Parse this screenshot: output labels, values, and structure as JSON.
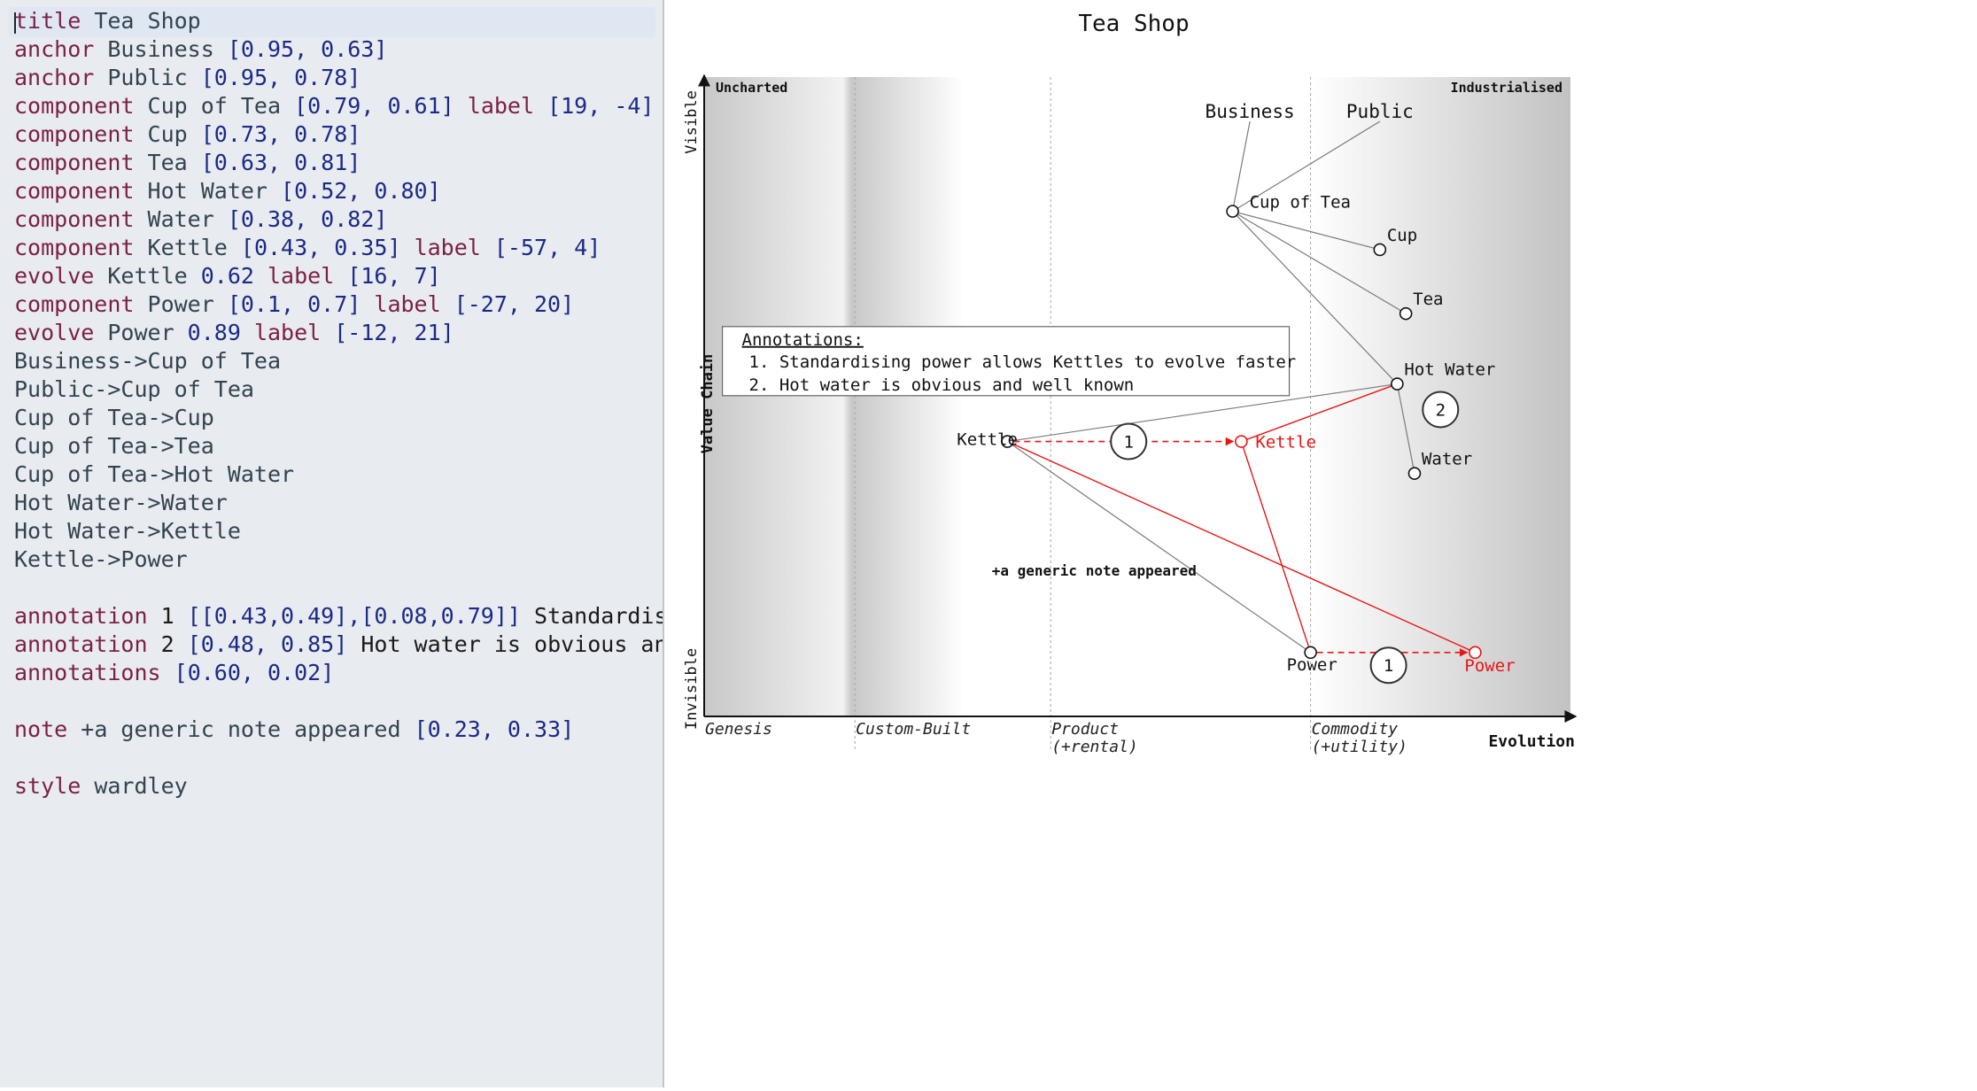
{
  "editor": {
    "lines": [
      {
        "segs": [
          {
            "c": "kw",
            "t": "title"
          },
          {
            "c": "txt",
            "t": " Tea Shop"
          }
        ]
      },
      {
        "segs": [
          {
            "c": "kw",
            "t": "anchor"
          },
          {
            "c": "txt",
            "t": " Business "
          },
          {
            "c": "num",
            "t": "[0.95, 0.63]"
          }
        ]
      },
      {
        "segs": [
          {
            "c": "kw",
            "t": "anchor"
          },
          {
            "c": "txt",
            "t": " Public "
          },
          {
            "c": "num",
            "t": "[0.95, 0.78]"
          }
        ]
      },
      {
        "segs": [
          {
            "c": "kw",
            "t": "component"
          },
          {
            "c": "txt",
            "t": " Cup of Tea "
          },
          {
            "c": "num",
            "t": "[0.79, 0.61]"
          },
          {
            "c": "kw",
            "t": " label "
          },
          {
            "c": "num",
            "t": "[19, -4]"
          }
        ]
      },
      {
        "segs": [
          {
            "c": "kw",
            "t": "component"
          },
          {
            "c": "txt",
            "t": " Cup "
          },
          {
            "c": "num",
            "t": "[0.73, 0.78]"
          }
        ]
      },
      {
        "segs": [
          {
            "c": "kw",
            "t": "component"
          },
          {
            "c": "txt",
            "t": " Tea "
          },
          {
            "c": "num",
            "t": "[0.63, 0.81]"
          }
        ]
      },
      {
        "segs": [
          {
            "c": "kw",
            "t": "component"
          },
          {
            "c": "txt",
            "t": " Hot Water "
          },
          {
            "c": "num",
            "t": "[0.52, 0.80]"
          }
        ]
      },
      {
        "segs": [
          {
            "c": "kw",
            "t": "component"
          },
          {
            "c": "txt",
            "t": " Water "
          },
          {
            "c": "num",
            "t": "[0.38, 0.82]"
          }
        ]
      },
      {
        "segs": [
          {
            "c": "kw",
            "t": "component"
          },
          {
            "c": "txt",
            "t": " Kettle "
          },
          {
            "c": "num",
            "t": "[0.43, 0.35]"
          },
          {
            "c": "kw",
            "t": " label "
          },
          {
            "c": "num",
            "t": "[-57, 4]"
          }
        ]
      },
      {
        "segs": [
          {
            "c": "kw",
            "t": "evolve"
          },
          {
            "c": "txt",
            "t": " Kettle "
          },
          {
            "c": "num",
            "t": "0.62"
          },
          {
            "c": "kw",
            "t": " label "
          },
          {
            "c": "num",
            "t": "[16, 7]"
          }
        ]
      },
      {
        "segs": [
          {
            "c": "kw",
            "t": "component"
          },
          {
            "c": "txt",
            "t": " Power "
          },
          {
            "c": "num",
            "t": "[0.1, 0.7]"
          },
          {
            "c": "kw",
            "t": " label "
          },
          {
            "c": "num",
            "t": "[-27, 20]"
          }
        ]
      },
      {
        "segs": [
          {
            "c": "kw",
            "t": "evolve"
          },
          {
            "c": "txt",
            "t": " Power "
          },
          {
            "c": "num",
            "t": "0.89"
          },
          {
            "c": "kw",
            "t": " label "
          },
          {
            "c": "num",
            "t": "[-12, 21]"
          }
        ]
      },
      {
        "segs": [
          {
            "c": "txt",
            "t": "Business->Cup of Tea"
          }
        ]
      },
      {
        "segs": [
          {
            "c": "txt",
            "t": "Public->Cup of Tea"
          }
        ]
      },
      {
        "segs": [
          {
            "c": "txt",
            "t": "Cup of Tea->Cup"
          }
        ]
      },
      {
        "segs": [
          {
            "c": "txt",
            "t": "Cup of Tea->Tea"
          }
        ]
      },
      {
        "segs": [
          {
            "c": "txt",
            "t": "Cup of Tea->Hot Water"
          }
        ]
      },
      {
        "segs": [
          {
            "c": "txt",
            "t": "Hot Water->Water"
          }
        ]
      },
      {
        "segs": [
          {
            "c": "txt",
            "t": "Hot Water->Kettle"
          }
        ]
      },
      {
        "segs": [
          {
            "c": "txt",
            "t": "Kettle->Power"
          }
        ]
      },
      {
        "segs": []
      },
      {
        "segs": [
          {
            "c": "kw",
            "t": "annotation"
          },
          {
            "c": "plain",
            "t": " 1 "
          },
          {
            "c": "num",
            "t": "[[0.43,0.49],[0.08,0.79]]"
          },
          {
            "c": "plain",
            "t": " Standardisi"
          }
        ]
      },
      {
        "segs": [
          {
            "c": "kw",
            "t": "annotation"
          },
          {
            "c": "plain",
            "t": " 2 "
          },
          {
            "c": "num",
            "t": "[0.48, 0.85]"
          },
          {
            "c": "plain",
            "t": " Hot water is obvious and"
          }
        ]
      },
      {
        "segs": [
          {
            "c": "kw",
            "t": "annotations"
          },
          {
            "c": "plain",
            "t": " "
          },
          {
            "c": "num",
            "t": "[0.60, 0.02]"
          }
        ]
      },
      {
        "segs": []
      },
      {
        "segs": [
          {
            "c": "kw",
            "t": "note"
          },
          {
            "c": "txt",
            "t": " +a generic note appeared "
          },
          {
            "c": "num",
            "t": "[0.23, 0.33]"
          }
        ]
      },
      {
        "segs": []
      },
      {
        "segs": [
          {
            "c": "kw",
            "t": "style"
          },
          {
            "c": "txt",
            "t": " wardley"
          }
        ]
      }
    ]
  },
  "map": {
    "title": "Tea Shop",
    "y_axis": {
      "label": "Value Chain",
      "top": "Visible",
      "bottom": "Invisible"
    },
    "x_axis": {
      "label": "Evolution"
    },
    "stages": [
      {
        "line1": "Genesis",
        "line2": "",
        "at": 0
      },
      {
        "line1": "Custom-Built",
        "line2": "",
        "at": 0.174
      },
      {
        "line1": "Product",
        "line2": "(+rental)",
        "at": 0.4
      },
      {
        "line1": "Commodity",
        "line2": "(+utility)",
        "at": 0.7
      }
    ],
    "corners": {
      "left": "Uncharted",
      "right": "Industrialised"
    },
    "anchors": [
      {
        "name": "Business",
        "visibility": 0.95,
        "maturity": 0.63
      },
      {
        "name": "Public",
        "visibility": 0.95,
        "maturity": 0.78
      }
    ],
    "components": [
      {
        "name": "Cup of Tea",
        "visibility": 0.79,
        "maturity": 0.61,
        "label_offset": [
          19,
          -4
        ]
      },
      {
        "name": "Cup",
        "visibility": 0.73,
        "maturity": 0.78
      },
      {
        "name": "Tea",
        "visibility": 0.63,
        "maturity": 0.81
      },
      {
        "name": "Hot Water",
        "visibility": 0.52,
        "maturity": 0.8
      },
      {
        "name": "Water",
        "visibility": 0.38,
        "maturity": 0.82
      },
      {
        "name": "Kettle",
        "visibility": 0.43,
        "maturity": 0.35,
        "label_offset": [
          -57,
          4
        ]
      },
      {
        "name": "Power",
        "visibility": 0.1,
        "maturity": 0.7,
        "label_offset": [
          -27,
          20
        ]
      }
    ],
    "evolved": [
      {
        "name": "Kettle",
        "from": "Kettle",
        "maturity": 0.62,
        "label_offset": [
          16,
          7
        ]
      },
      {
        "name": "Power",
        "from": "Power",
        "maturity": 0.89,
        "label_offset": [
          -12,
          21
        ]
      }
    ],
    "links": [
      [
        "Business",
        "Cup of Tea"
      ],
      [
        "Public",
        "Cup of Tea"
      ],
      [
        "Cup of Tea",
        "Cup"
      ],
      [
        "Cup of Tea",
        "Tea"
      ],
      [
        "Cup of Tea",
        "Hot Water"
      ],
      [
        "Hot Water",
        "Water"
      ],
      [
        "Hot Water",
        "Kettle"
      ],
      [
        "Kettle",
        "Power"
      ]
    ],
    "annotation_markers": [
      {
        "number": "1",
        "points": [
          [
            0.43,
            0.49
          ],
          [
            0.08,
            0.79
          ]
        ]
      },
      {
        "number": "2",
        "points": [
          [
            0.48,
            0.85
          ]
        ]
      }
    ],
    "annotations_box": {
      "heading": "Annotations:",
      "visibility": 0.6,
      "maturity": 0.02,
      "items": [
        "1. Standardising power allows Kettles to evolve faster",
        "2. Hot water is obvious and well known"
      ]
    },
    "note": {
      "text": "+a generic note appeared",
      "visibility": 0.23,
      "maturity": 0.33
    },
    "colors": {
      "evolve": "#e81515",
      "line": "#7a7a7a",
      "ink": "#111111",
      "grid": "#a8a8a8"
    }
  }
}
